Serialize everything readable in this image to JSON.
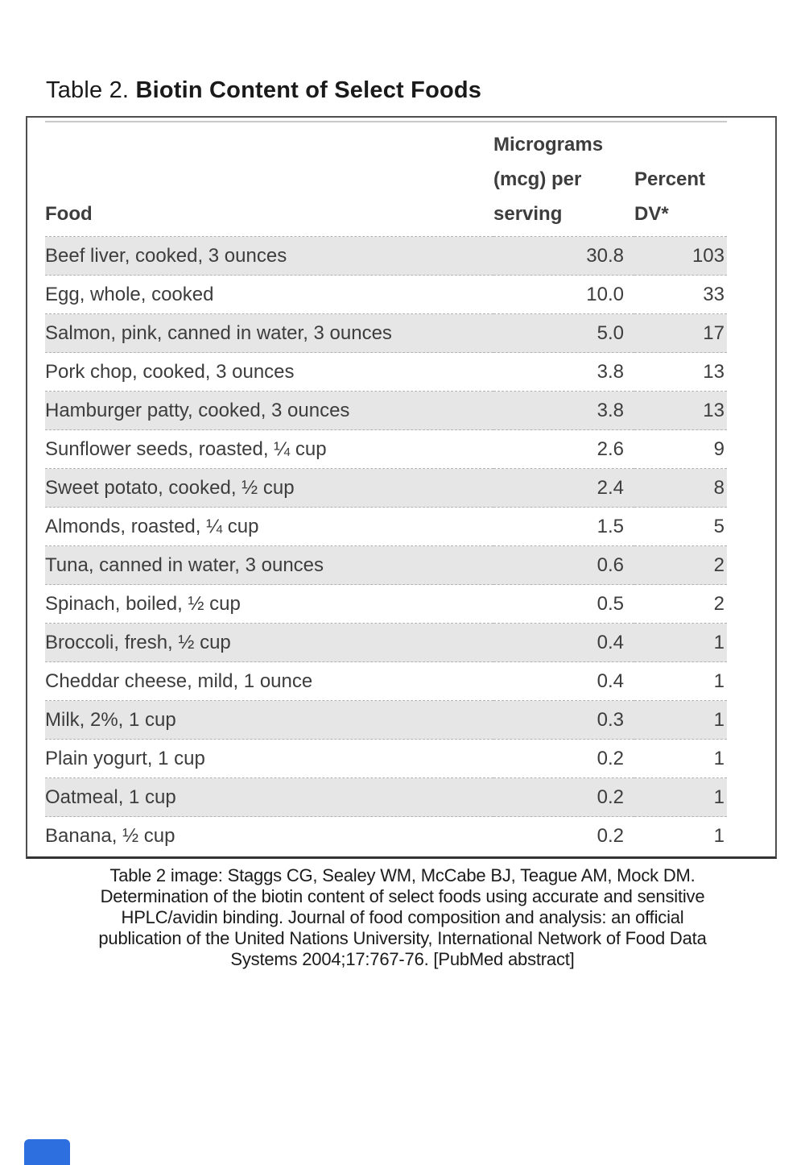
{
  "title": {
    "prefix": "Table 2. ",
    "bold": "Biotin Content of Select Foods"
  },
  "table": {
    "headers": {
      "food": "Food",
      "mcg": "Micrograms\n(mcg) per\nserving",
      "dv": "Percent\nDV*"
    },
    "rows": [
      {
        "food": "Beef liver, cooked, 3 ounces",
        "mcg": "30.8",
        "dv": "103"
      },
      {
        "food": "Egg, whole, cooked",
        "mcg": "10.0",
        "dv": "33"
      },
      {
        "food": "Salmon, pink, canned in water, 3 ounces",
        "mcg": "5.0",
        "dv": "17"
      },
      {
        "food": "Pork chop, cooked, 3 ounces",
        "mcg": "3.8",
        "dv": "13"
      },
      {
        "food": "Hamburger patty, cooked, 3 ounces",
        "mcg": "3.8",
        "dv": "13"
      },
      {
        "food": "Sunflower seeds, roasted, ¼ cup",
        "mcg": "2.6",
        "dv": "9"
      },
      {
        "food": "Sweet potato, cooked, ½ cup",
        "mcg": "2.4",
        "dv": "8"
      },
      {
        "food": "Almonds, roasted, ¼ cup",
        "mcg": "1.5",
        "dv": "5"
      },
      {
        "food": "Tuna, canned in water, 3 ounces",
        "mcg": "0.6",
        "dv": "2"
      },
      {
        "food": "Spinach, boiled, ½ cup",
        "mcg": "0.5",
        "dv": "2"
      },
      {
        "food": "Broccoli, fresh, ½ cup",
        "mcg": "0.4",
        "dv": "1"
      },
      {
        "food": "Cheddar cheese, mild, 1 ounce",
        "mcg": "0.4",
        "dv": "1"
      },
      {
        "food": "Milk, 2%, 1 cup",
        "mcg": "0.3",
        "dv": "1"
      },
      {
        "food": "Plain yogurt, 1 cup",
        "mcg": "0.2",
        "dv": "1"
      },
      {
        "food": "Oatmeal, 1 cup",
        "mcg": "0.2",
        "dv": "1"
      },
      {
        "food": "Banana, ½ cup",
        "mcg": "0.2",
        "dv": "1"
      }
    ]
  },
  "caption_lines": [
    "Table 2 image: Staggs CG, Sealey WM, McCabe BJ, Teague AM, Mock DM.",
    "Determination of the biotin content of select foods using accurate and sensitive",
    "HPLC/avidin binding. Journal of food composition and analysis: an official",
    "publication of the United Nations University, International Network of Food Data",
    "Systems 2004;17:767-76. [PubMed abstract]"
  ],
  "colors": {
    "row_stripe": "#e6e6e6",
    "dashed_separator": "#b3b3b3",
    "outer_border": "#4f4f4f",
    "accent_blue": "#2e6fdf"
  }
}
